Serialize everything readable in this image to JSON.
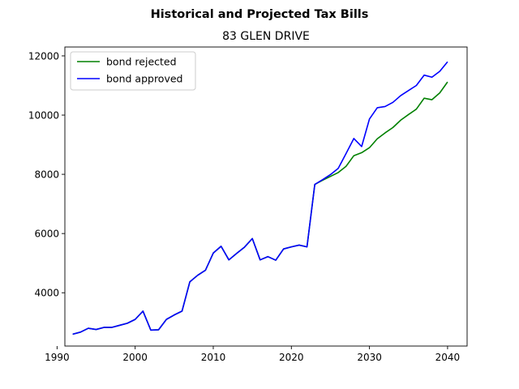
{
  "chart_data": {
    "type": "line",
    "suptitle": "Historical and Projected Tax Bills",
    "title": "83 GLEN DRIVE",
    "xlabel": "",
    "ylabel": "",
    "xlim": [
      1991,
      2042.5
    ],
    "ylim": [
      2200,
      12300
    ],
    "xticks": [
      1990,
      2000,
      2010,
      2020,
      2030,
      2040
    ],
    "yticks": [
      4000,
      6000,
      8000,
      10000,
      12000
    ],
    "grid": false,
    "legend_position": "upper-left",
    "x": [
      1992,
      1993,
      1994,
      1995,
      1996,
      1997,
      1998,
      1999,
      2000,
      2001,
      2002,
      2003,
      2004,
      2005,
      2006,
      2007,
      2008,
      2009,
      2010,
      2011,
      2012,
      2013,
      2014,
      2015,
      2016,
      2017,
      2018,
      2019,
      2020,
      2021,
      2022,
      2023,
      2024,
      2025,
      2026,
      2027,
      2028,
      2029,
      2030,
      2031,
      2032,
      2033,
      2034,
      2035,
      2036,
      2037,
      2038,
      2039,
      2040
    ],
    "series": [
      {
        "name": "bond rejected",
        "color": "#008000",
        "values": [
          2600,
          2670,
          2800,
          2760,
          2830,
          2830,
          2900,
          2970,
          3100,
          3380,
          2740,
          2750,
          3100,
          3250,
          3380,
          4370,
          4590,
          4760,
          5340,
          5570,
          5110,
          5330,
          5540,
          5830,
          5110,
          5220,
          5100,
          5480,
          5550,
          5610,
          5550,
          7660,
          7800,
          7930,
          8060,
          8270,
          8630,
          8730,
          8900,
          9200,
          9400,
          9580,
          9830,
          10020,
          10200,
          10570,
          10520,
          10750,
          11120
        ]
      },
      {
        "name": "bond approved",
        "color": "#0000ff",
        "values": [
          2600,
          2670,
          2800,
          2760,
          2830,
          2830,
          2900,
          2970,
          3100,
          3380,
          2740,
          2750,
          3100,
          3250,
          3380,
          4370,
          4590,
          4760,
          5340,
          5570,
          5110,
          5330,
          5540,
          5830,
          5110,
          5220,
          5100,
          5480,
          5550,
          5610,
          5550,
          7660,
          7820,
          7990,
          8200,
          8700,
          9210,
          8940,
          9870,
          10250,
          10290,
          10430,
          10660,
          10830,
          11000,
          11350,
          11280,
          11480,
          11800
        ]
      }
    ]
  }
}
